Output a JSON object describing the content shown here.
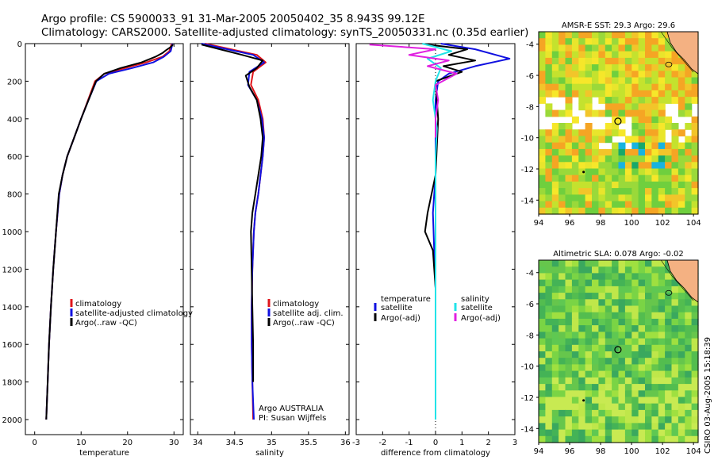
{
  "header": {
    "line1": "Argo profile: CS 5900033_91 31-Mar-2005 20050402_35 8.943S 99.12E",
    "line2": "Climatology: CARS2000. Satellite-adjusted climatology: synTS_20050331.nc (0.35d earlier)"
  },
  "colors": {
    "red": "#e0151b",
    "blue": "#1010e0",
    "black": "#000000",
    "cyan": "#22e3e8",
    "magenta": "#e020e0",
    "land": "#f4b182"
  },
  "chart_data": [
    {
      "id": "temperature",
      "type": "line",
      "xlabel": "temperature",
      "ylabel": "",
      "xlim": [
        -2,
        32
      ],
      "ylim": [
        2080,
        0
      ],
      "xticks": [
        0,
        10,
        20,
        30
      ],
      "yticks": [
        0,
        200,
        400,
        600,
        800,
        1000,
        1200,
        1400,
        1600,
        1800,
        2000
      ],
      "legend": [
        "climatology",
        "satellite-adjusted climatology",
        "Argo(..raw -QC)"
      ],
      "series": [
        {
          "name": "climatology",
          "color": "#e0151b",
          "x": [
            29.5,
            29.0,
            27.5,
            24.0,
            19.5,
            15.0,
            13.0,
            11.5,
            10.0,
            8.5,
            7.0,
            6.0,
            5.3,
            4.6,
            4.0,
            3.5,
            3.1,
            2.8,
            2.5
          ],
          "y": [
            0,
            40,
            70,
            100,
            130,
            160,
            200,
            300,
            400,
            500,
            600,
            700,
            800,
            1000,
            1200,
            1400,
            1600,
            1800,
            2000
          ]
        },
        {
          "name": "satellite-adjusted climatology",
          "color": "#1010e0",
          "x": [
            29.7,
            29.3,
            27.8,
            25.5,
            21.0,
            16.0,
            13.3,
            11.6,
            10.0,
            8.5,
            7.0,
            6.0,
            5.3,
            4.6,
            4.0,
            3.5,
            3.1,
            2.8,
            2.5
          ],
          "y": [
            0,
            40,
            70,
            100,
            130,
            160,
            200,
            300,
            400,
            500,
            600,
            700,
            800,
            1000,
            1200,
            1400,
            1600,
            1800,
            2000
          ]
        },
        {
          "name": "Argo(..raw -QC)",
          "color": "#000000",
          "x": [
            29.8,
            29.2,
            28.3,
            27.5,
            26.0,
            23.0,
            18.5,
            15.0,
            13.2,
            11.6,
            10.0,
            8.5,
            7.0,
            6.0,
            5.2,
            4.6,
            4.0,
            3.5,
            3.1,
            2.8,
            2.5
          ],
          "y": [
            5,
            20,
            35,
            50,
            70,
            100,
            130,
            160,
            200,
            300,
            400,
            500,
            600,
            700,
            800,
            1000,
            1200,
            1400,
            1600,
            1800,
            2000
          ]
        }
      ]
    },
    {
      "id": "salinity",
      "type": "line",
      "xlabel": "salinity",
      "xlim": [
        33.9,
        36.05
      ],
      "ylim": [
        2080,
        0
      ],
      "xticks": [
        34,
        34.5,
        35,
        35.5,
        36
      ],
      "yticks": [
        0,
        200,
        400,
        600,
        800,
        1000,
        1200,
        1400,
        1600,
        1800,
        2000
      ],
      "legend": [
        "climatology",
        "satellite adj. clim.",
        "Argo(..raw -QC)"
      ],
      "annotations": [
        "Argo AUSTRALIA",
        "PI: Susan Wijffels"
      ],
      "series": [
        {
          "name": "climatology",
          "color": "#e0151b",
          "x": [
            34.1,
            34.45,
            34.8,
            34.92,
            34.75,
            34.72,
            34.82,
            34.88,
            34.9,
            34.88,
            34.85,
            34.82,
            34.78,
            34.76,
            34.74,
            34.73,
            34.73,
            34.74,
            34.75
          ],
          "y": [
            0,
            30,
            60,
            100,
            150,
            220,
            300,
            400,
            500,
            600,
            700,
            800,
            900,
            1000,
            1200,
            1400,
            1600,
            1800,
            2000
          ]
        },
        {
          "name": "satellite adj. clim.",
          "color": "#1010e0",
          "x": [
            34.05,
            34.4,
            34.75,
            34.9,
            34.7,
            34.68,
            34.8,
            34.87,
            34.9,
            34.88,
            34.85,
            34.82,
            34.78,
            34.76,
            34.74,
            34.73,
            34.73,
            34.74,
            34.76
          ],
          "y": [
            0,
            30,
            60,
            100,
            150,
            220,
            300,
            400,
            500,
            600,
            700,
            800,
            900,
            1000,
            1200,
            1400,
            1600,
            1800,
            2000
          ]
        },
        {
          "name": "Argo(..raw -QC)",
          "color": "#000000",
          "x": [
            34.05,
            34.3,
            34.6,
            34.88,
            34.8,
            34.65,
            34.7,
            34.8,
            34.85,
            34.88,
            34.86,
            34.82,
            34.78,
            34.74,
            34.72,
            34.73,
            34.74,
            34.75,
            34.75
          ],
          "y": [
            5,
            30,
            60,
            90,
            130,
            170,
            230,
            300,
            400,
            500,
            600,
            700,
            800,
            900,
            1000,
            1200,
            1400,
            1600,
            1800
          ]
        }
      ]
    },
    {
      "id": "difference",
      "type": "line",
      "xlabel": "difference from climatology",
      "xlim": [
        -3,
        3
      ],
      "ylim": [
        2080,
        0
      ],
      "xticks": [
        -3,
        -2,
        -1,
        0,
        1,
        2,
        3
      ],
      "yticks": [
        0,
        200,
        400,
        600,
        800,
        1000,
        1200,
        1400,
        1600,
        1800,
        2000
      ],
      "legend_left": [
        "temperature",
        "satellite",
        "Argo(-adj)"
      ],
      "legend_right": [
        "salinity",
        "satellite",
        "Argo(-adj)"
      ],
      "series": [
        {
          "name": "temperature satellite",
          "color": "#1010e0",
          "x": [
            0.2,
            1.5,
            2.8,
            1.5,
            0.5,
            0.1,
            0.0,
            0.0,
            0.0,
            -0.1,
            -0.05,
            0.0,
            0.0,
            0.0,
            0.0
          ],
          "y": [
            0,
            30,
            80,
            120,
            160,
            200,
            300,
            500,
            700,
            900,
            1100,
            1300,
            1500,
            1800,
            2000
          ]
        },
        {
          "name": "temperature Argo(-adj)",
          "color": "#000000",
          "x": [
            -0.3,
            1.2,
            0.5,
            1.5,
            0.3,
            1.0,
            0.0,
            0.1,
            0.0,
            -0.3,
            -0.4,
            -0.1,
            0.0,
            0.0
          ],
          "y": [
            5,
            30,
            60,
            90,
            120,
            150,
            200,
            400,
            700,
            900,
            1000,
            1100,
            1300,
            1500
          ]
        },
        {
          "name": "salinity satellite",
          "color": "#22e3e8",
          "x": [
            -0.5,
            0.6,
            -0.3,
            0.2,
            0.0,
            -0.1,
            0.05,
            0.0,
            0.0,
            0.0,
            0.0,
            0.0
          ],
          "y": [
            0,
            40,
            80,
            130,
            200,
            300,
            450,
            600,
            900,
            1200,
            1600,
            2000
          ]
        },
        {
          "name": "salinity Argo(-adj)",
          "color": "#e020e0",
          "x": [
            -2.5,
            0.0,
            -1.0,
            0.5,
            -0.3,
            0.8,
            0.0,
            0.1,
            0.0,
            0.0
          ],
          "y": [
            5,
            30,
            60,
            90,
            120,
            160,
            220,
            300,
            400,
            500
          ]
        }
      ]
    },
    {
      "id": "sst_map",
      "type": "heatmap",
      "title": "AMSR-E SST: 29.3 Argo: 29.6",
      "xlim": [
        94,
        104.3
      ],
      "ylim": [
        -14.9,
        -3.2
      ],
      "xticks": [
        94,
        96,
        98,
        100,
        102,
        104
      ],
      "yticks": [
        -4,
        -6,
        -8,
        -10,
        -12,
        -14
      ],
      "markers": [
        {
          "lon": 99.12,
          "lat": -8.943,
          "label": "Argo float"
        }
      ]
    },
    {
      "id": "sla_map",
      "type": "heatmap",
      "title": "Altimetric SLA: 0.078 Argo: -0.02",
      "xlim": [
        94,
        104.3
      ],
      "ylim": [
        -14.9,
        -3.2
      ],
      "xticks": [
        94,
        96,
        98,
        100,
        102,
        104
      ],
      "yticks": [
        -4,
        -6,
        -8,
        -10,
        -12,
        -14
      ],
      "markers": [
        {
          "lon": 99.12,
          "lat": -8.943,
          "label": "Argo float"
        }
      ]
    }
  ],
  "footer": {
    "credit": "CSIRO 03-Aug-2005 15:18:39"
  }
}
